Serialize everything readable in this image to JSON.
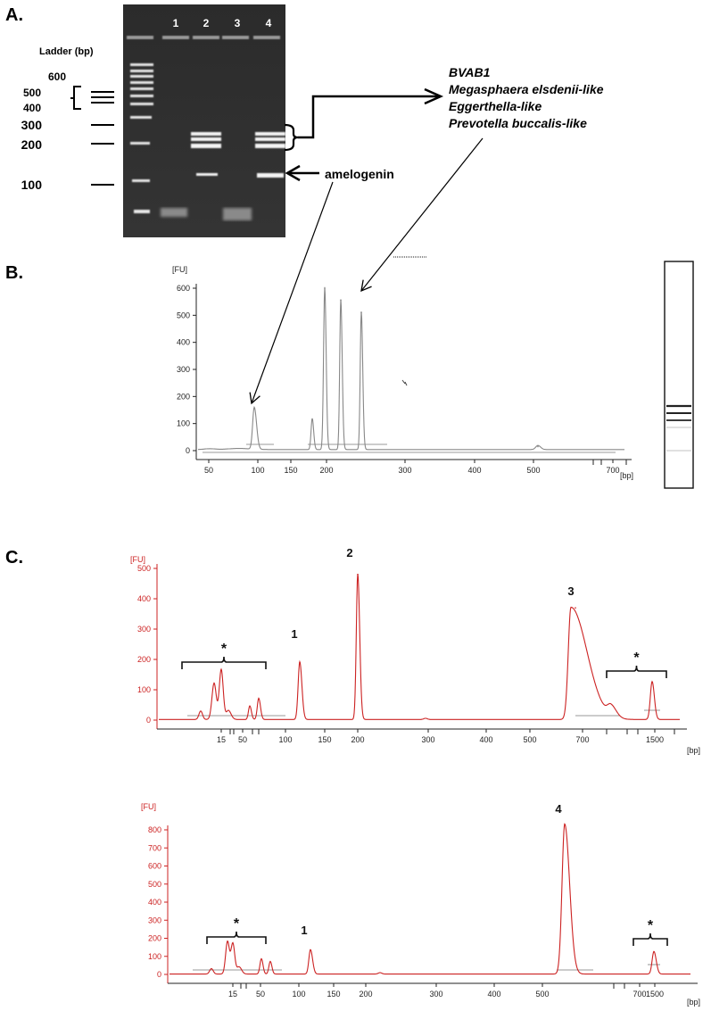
{
  "panel_a": {
    "letter": "A.",
    "ladder_title": "Ladder (bp)",
    "ladder_labels": [
      "600",
      "500",
      "400",
      "300",
      "200",
      "100"
    ],
    "lane_labels": [
      "1",
      "2",
      "3",
      "4"
    ],
    "species": [
      "BVAB1",
      "Megasphaera elsdenii-like",
      "Eggerthella-like",
      "Prevotella buccalis-like"
    ],
    "amelogenin_label": "amelogenin"
  },
  "panel_b": {
    "letter": "B."
  },
  "panel_c": {
    "letter": "C."
  },
  "chart_data": [
    {
      "type": "line",
      "panel": "B",
      "ylabel": "[FU]",
      "xlabel": "[bp]",
      "y_ticks": [
        0,
        100,
        200,
        300,
        400,
        500,
        600
      ],
      "x_ticks": [
        "50",
        "100",
        "150",
        "200",
        "300",
        "400",
        "500",
        "700"
      ],
      "peaks": [
        {
          "x_bp": 118,
          "y_fu": 155
        },
        {
          "x_bp": 187,
          "y_fu": 115
        },
        {
          "x_bp": 206,
          "y_fu": 600
        },
        {
          "x_bp": 224,
          "y_fu": 555
        },
        {
          "x_bp": 250,
          "y_fu": 510
        },
        {
          "x_bp": 545,
          "y_fu": 15
        }
      ],
      "line_color": "#888888"
    },
    {
      "type": "line",
      "panel": "C-top",
      "ylabel": "[FU]",
      "xlabel": "[bp]",
      "y_ticks": [
        0,
        100,
        200,
        300,
        400,
        500
      ],
      "x_ticks": [
        "15",
        "50",
        "100",
        "150",
        "200",
        "300",
        "400",
        "500",
        "700",
        "1500"
      ],
      "peak_labels": [
        "1",
        "2",
        "3"
      ],
      "bracket_labels": [
        "*",
        "*"
      ],
      "peaks": [
        {
          "x": "15",
          "y_fu": 165
        },
        {
          "x": "117",
          "y_fu": 190
        },
        {
          "x": "198",
          "y_fu": 480
        },
        {
          "x": "660",
          "y_fu": 370
        },
        {
          "x": "1500",
          "y_fu": 125
        }
      ],
      "line_color": "#cc2222"
    },
    {
      "type": "line",
      "panel": "C-bottom",
      "ylabel": "[FU]",
      "xlabel": "[bp]",
      "y_ticks": [
        0,
        100,
        200,
        300,
        400,
        500,
        600,
        700,
        800
      ],
      "x_ticks": [
        "15",
        "50",
        "100",
        "150",
        "200",
        "300",
        "400",
        "500",
        "700",
        "1500"
      ],
      "peak_labels": [
        "1",
        "4"
      ],
      "bracket_labels": [
        "*",
        "*"
      ],
      "peaks": [
        {
          "x": "15",
          "y_fu": 180
        },
        {
          "x": "117",
          "y_fu": 135
        },
        {
          "x": "600",
          "y_fu": 830
        },
        {
          "x": "1500",
          "y_fu": 125
        }
      ],
      "line_color": "#cc2222"
    }
  ]
}
